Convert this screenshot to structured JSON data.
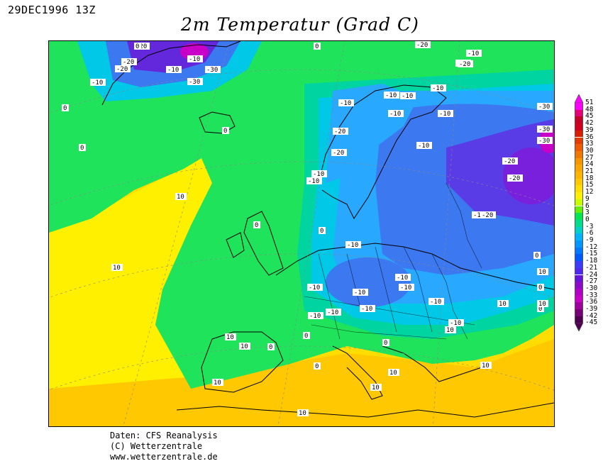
{
  "header": {
    "date": "29DEC1996 13Z",
    "title": "2m Temperatur (Grad C)"
  },
  "legend": {
    "levels": [
      "51",
      "48",
      "45",
      "42",
      "39",
      "36",
      "33",
      "30",
      "27",
      "24",
      "21",
      "18",
      "15",
      "12",
      "9",
      "6",
      "3",
      "0",
      "-3",
      "-6",
      "-9",
      "-12",
      "-15",
      "-18",
      "-21",
      "-24",
      "-27",
      "-30",
      "-33",
      "-36",
      "-39",
      "-42",
      "-45"
    ],
    "colors": [
      "#ff00ff",
      "#e8007a",
      "#c80028",
      "#d2001e",
      "#dc1e00",
      "#e63c00",
      "#f05a00",
      "#f07800",
      "#f59600",
      "#faa500",
      "#ffb400",
      "#ffc800",
      "#ffdd00",
      "#fff000",
      "#c8ff00",
      "#64f000",
      "#00e650",
      "#00dc8c",
      "#00d2c8",
      "#00b4ff",
      "#0096ff",
      "#0078ff",
      "#005aff",
      "#3c3cff",
      "#5028f0",
      "#6414dc",
      "#8c0ac8",
      "#b400c8",
      "#c800c8",
      "#a000a0",
      "#780078",
      "#500050"
    ]
  },
  "map": {
    "contour_labels": [
      "-20",
      "0",
      "-20",
      "-10",
      "-20",
      "-10",
      "-30",
      "-30",
      "-10",
      "0",
      "-20",
      "-10",
      "-10",
      "-10",
      "-10",
      "-20",
      "-10",
      "-10",
      "-10",
      "-20",
      "-10",
      "0",
      "0",
      "-20",
      "-10",
      "-10",
      "-20",
      "-30",
      "-20",
      "-30",
      "-10",
      "-20",
      "-10",
      "-30",
      "0",
      "10",
      "0",
      "0",
      "-10",
      "10",
      "-10",
      "-10",
      "-10",
      "-10",
      "-10",
      "-10",
      "-10",
      "-10",
      "-10",
      "0",
      "0",
      "0",
      "10",
      "10",
      "0",
      "0",
      "0",
      "10",
      "10",
      "10",
      "10",
      "10",
      "10",
      "0",
      "10",
      "10",
      "10",
      "0"
    ]
  },
  "credits": {
    "line1": "Daten: CFS Reanalysis",
    "line2": "(C) Wetterzentrale",
    "line3": "www.wetterzentrale.de"
  }
}
